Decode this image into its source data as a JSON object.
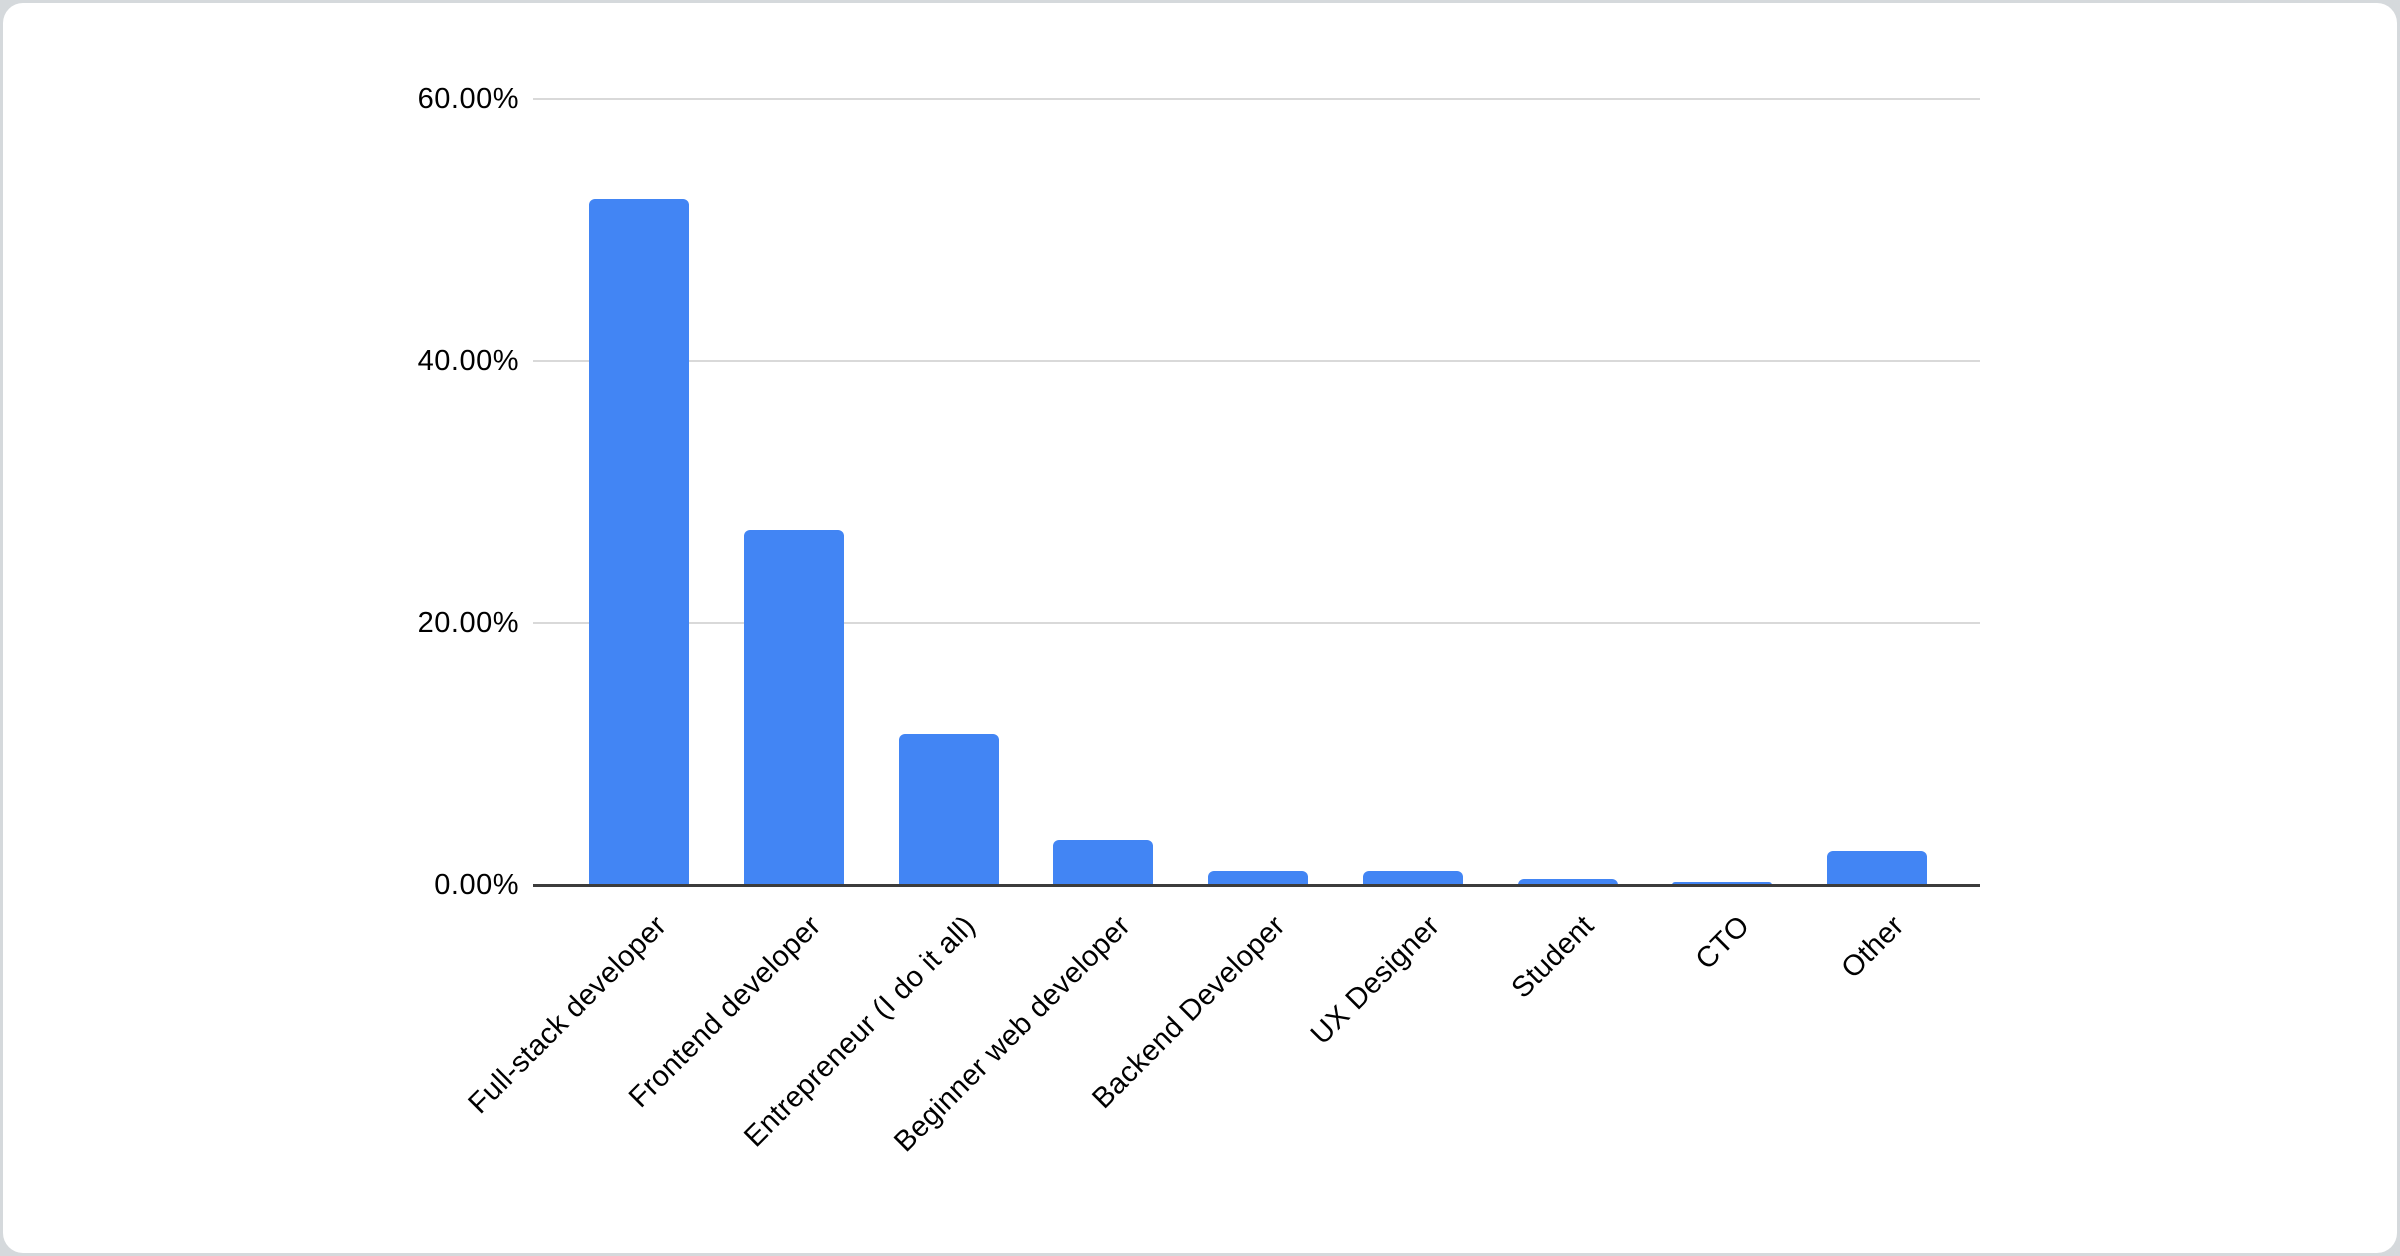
{
  "page": {
    "background_color": "#d5d9dc",
    "card_color": "#ffffff"
  },
  "chart_data": {
    "type": "bar",
    "title": "",
    "xlabel": "",
    "ylabel": "",
    "categories": [
      "Full-stack developer",
      "Frontend developer",
      "Entrepreneur (I do it all)",
      "Beginner web developer",
      "Backend Developer",
      "UX Designer",
      "Student",
      "CTO",
      "Other"
    ],
    "values": [
      52.4,
      27.1,
      11.5,
      3.4,
      1.1,
      1.1,
      0.45,
      0.2,
      2.6
    ],
    "value_unit": "%",
    "ylim": [
      0,
      60
    ],
    "yticks": [
      {
        "value": 0,
        "label": "0.00%"
      },
      {
        "value": 20,
        "label": "20.00%"
      },
      {
        "value": 40,
        "label": "40.00%"
      },
      {
        "value": 60,
        "label": "60.00%"
      }
    ],
    "bar_color": "#4285f4",
    "gridline_color": "#d9d9d9",
    "axis_line_color": "#3c3c3c",
    "label_color": "#000000",
    "grid": true,
    "legend_position": "none",
    "x_label_rotation_deg": 45
  }
}
